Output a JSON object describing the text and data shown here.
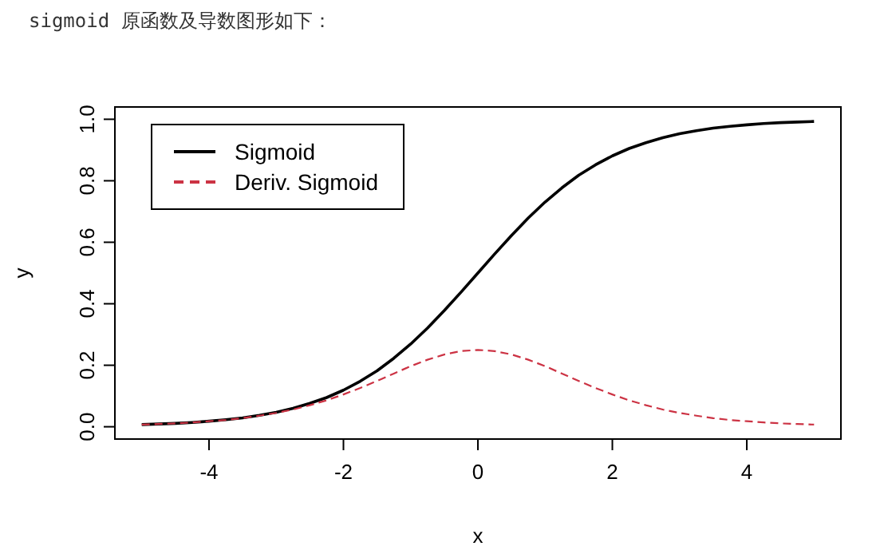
{
  "chart_data": {
    "type": "line",
    "title": "sigmoid 原函数及导数图形如下：",
    "xlabel": "x",
    "ylabel": "y",
    "x": [
      -5,
      -4.75,
      -4.5,
      -4.25,
      -4,
      -3.75,
      -3.5,
      -3.25,
      -3,
      -2.75,
      -2.5,
      -2.25,
      -2,
      -1.75,
      -1.5,
      -1.25,
      -1,
      -0.75,
      -0.5,
      -0.25,
      0,
      0.25,
      0.5,
      0.75,
      1,
      1.25,
      1.5,
      1.75,
      2,
      2.25,
      2.5,
      2.75,
      3,
      3.25,
      3.5,
      3.75,
      4,
      4.25,
      4.5,
      4.75,
      5
    ],
    "series": [
      {
        "name": "Sigmoid",
        "color": "#000000",
        "line_style": "solid",
        "values": [
          0.007,
          0.009,
          0.011,
          0.014,
          0.018,
          0.023,
          0.029,
          0.037,
          0.047,
          0.06,
          0.076,
          0.095,
          0.119,
          0.148,
          0.182,
          0.223,
          0.269,
          0.321,
          0.378,
          0.438,
          0.5,
          0.562,
          0.622,
          0.679,
          0.731,
          0.777,
          0.818,
          0.852,
          0.881,
          0.905,
          0.924,
          0.94,
          0.953,
          0.963,
          0.971,
          0.977,
          0.982,
          0.986,
          0.989,
          0.991,
          0.993
        ]
      },
      {
        "name": "Deriv. Sigmoid",
        "color": "#cc3344",
        "line_style": "dashed",
        "values": [
          0.007,
          0.009,
          0.011,
          0.014,
          0.018,
          0.022,
          0.028,
          0.036,
          0.045,
          0.056,
          0.07,
          0.086,
          0.105,
          0.126,
          0.149,
          0.173,
          0.197,
          0.218,
          0.235,
          0.246,
          0.25,
          0.246,
          0.235,
          0.218,
          0.197,
          0.173,
          0.149,
          0.126,
          0.105,
          0.086,
          0.07,
          0.056,
          0.045,
          0.036,
          0.028,
          0.022,
          0.018,
          0.014,
          0.011,
          0.009,
          0.007
        ]
      }
    ],
    "xlim": [
      -5.4,
      5.4
    ],
    "ylim": [
      -0.04,
      1.04
    ],
    "xticks": [
      -4,
      -2,
      0,
      2,
      4
    ],
    "yticks": [
      {
        "value": 0,
        "label": "0.0"
      },
      {
        "value": 0.2,
        "label": "0.2"
      },
      {
        "value": 0.4,
        "label": "0.4"
      },
      {
        "value": 0.6,
        "label": "0.6"
      },
      {
        "value": 0.8,
        "label": "0.8"
      },
      {
        "value": 1,
        "label": "1.0"
      }
    ],
    "grid": false,
    "legend": "top left",
    "marker": "none"
  }
}
